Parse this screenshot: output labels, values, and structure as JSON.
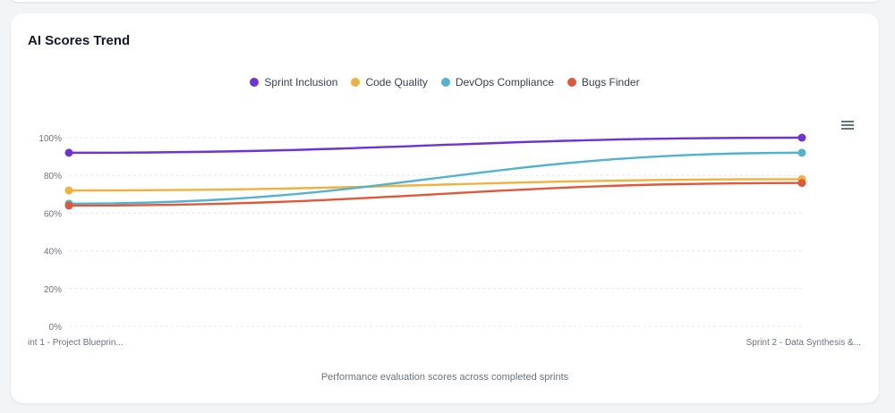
{
  "card": {
    "title": "AI Scores Trend",
    "caption": "Performance evaluation scores across completed sprints"
  },
  "menu": {
    "icon": "hamburger-menu-icon"
  },
  "chart_data": {
    "type": "line",
    "title": "AI Scores Trend",
    "xlabel": "Performance evaluation scores across completed sprints",
    "ylabel": "",
    "ylim": [
      0,
      100
    ],
    "yticks": [
      "0%",
      "20%",
      "40%",
      "60%",
      "80%",
      "100%"
    ],
    "ytick_values": [
      0,
      20,
      40,
      60,
      80,
      100
    ],
    "categories": [
      "int 1 - Project Blueprin...",
      "Sprint 2 - Data Synthesis &..."
    ],
    "grid": true,
    "legend_position": "top-center",
    "series": [
      {
        "name": "Sprint Inclusion",
        "color": "#6d33d4",
        "values": [
          92,
          100
        ]
      },
      {
        "name": "Code Quality",
        "color": "#f0b141",
        "values": [
          72,
          78
        ]
      },
      {
        "name": "DevOps Compliance",
        "color": "#52b2cf",
        "values": [
          65,
          92
        ]
      },
      {
        "name": "Bugs Finder",
        "color": "#e0583a",
        "values": [
          64,
          76
        ]
      }
    ]
  }
}
